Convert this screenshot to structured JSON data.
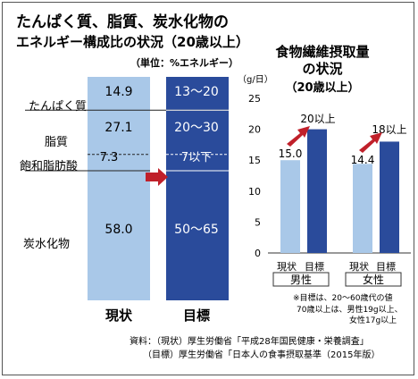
{
  "left_chart": {
    "title_line1": "たんぱく質、脂質、炭水化物の",
    "title_line2": "エネルギー構成比の状況（20歳以上）",
    "unit": "（単位：%エネルギー）",
    "categories": [
      "現状",
      "目標"
    ],
    "row_labels": [
      "たんぱく質",
      "脂質",
      "飽和脂肪酸",
      "炭水化物"
    ],
    "current_label": "現状",
    "target_label": "目標"
  },
  "right_chart": {
    "title_line1": "食物繊維摂取量",
    "title_line2": "の状況",
    "title_line3": "（20歳以上）",
    "unit": "（g/日）",
    "group_labels": [
      "男性",
      "女性"
    ],
    "bar_labels": [
      "現状",
      "目標"
    ],
    "note_line1": "※目標は、20〜60歳代の値",
    "note_line2": "70歳以上は、男性19g以上、",
    "note_line3": "女性17g以上"
  },
  "source_line1": "資料：（現状）厚生労働省「平成28年国民健康・栄養調査」",
  "source_line2": "（目標）厚生労働省「日本人の食事摂取基準（2015年版）",
  "colors": {
    "light_blue": "#a9c8e8",
    "dark_blue": "#2a4b9b",
    "arrow_red": "#c0202a"
  },
  "chart_data": [
    {
      "type": "bar",
      "stacked": true,
      "orientation": "vertical",
      "title": "たんぱく質、脂質、炭水化物の エネルギー構成比の状況（20歳以上）",
      "unit": "%エネルギー",
      "categories": [
        "現状",
        "目標"
      ],
      "series": [
        {
          "name": "たんぱく質",
          "values": [
            14.9,
            null
          ],
          "labels": [
            "14.9",
            "13〜20"
          ]
        },
        {
          "name": "脂質",
          "values": [
            27.1,
            null
          ],
          "labels": [
            "27.1",
            "20〜30"
          ]
        },
        {
          "name": "飽和脂肪酸",
          "values": [
            7.3,
            null
          ],
          "labels": [
            "7.3",
            "7以下"
          ]
        },
        {
          "name": "炭水化物",
          "values": [
            58.0,
            null
          ],
          "labels": [
            "58.0",
            "50〜65"
          ]
        }
      ]
    },
    {
      "type": "bar",
      "title": "食物繊維摂取量の状況（20歳以上）",
      "ylabel": "（g/日）",
      "ylim": [
        0,
        25
      ],
      "yticks": [
        0,
        5,
        10,
        15,
        20,
        25
      ],
      "groups": [
        "男性",
        "女性"
      ],
      "categories": [
        "現状",
        "目標"
      ],
      "series": [
        {
          "group": "男性",
          "values": [
            15.0,
            20
          ],
          "labels": [
            "15.0",
            "20以上"
          ]
        },
        {
          "group": "女性",
          "values": [
            14.4,
            18
          ],
          "labels": [
            "14.4",
            "18以上"
          ]
        }
      ]
    }
  ]
}
